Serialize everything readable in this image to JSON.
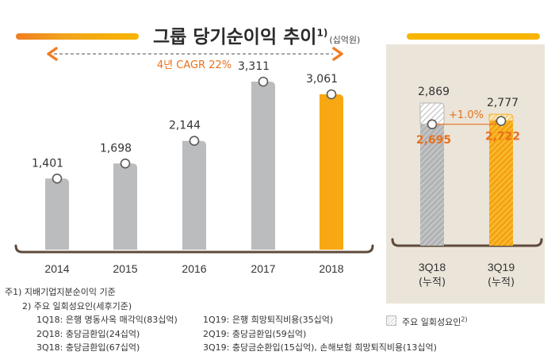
{
  "title": {
    "text": "그룹 당기순이익 추이",
    "sup": "1)",
    "unit": "(십억원)"
  },
  "colors": {
    "gray_bar": "#bbbcbe",
    "highlight_bar": "#f7a813",
    "orange_text": "#e8711a",
    "axis_dark": "#5e4a3a",
    "panel_bg": "#ebe4d9"
  },
  "chart_data": [
    {
      "type": "bar",
      "title": "",
      "categories": [
        "2014",
        "2015",
        "2016",
        "2017",
        "2018"
      ],
      "values": [
        1401,
        1698,
        2144,
        3311,
        3061
      ],
      "value_labels": [
        "1,401",
        "1,698",
        "2,144",
        "3,311",
        "3,061"
      ],
      "highlight_index": 4,
      "ylim": [
        0,
        3600
      ],
      "annotation": {
        "text": "4년 CAGR 22%",
        "arrow": "double-headed dashed arrow spanning 2014 to 2018"
      }
    },
    {
      "type": "bar",
      "title": "",
      "categories": [
        "3Q18\n(누적)",
        "3Q19\n(누적)"
      ],
      "category_lines": [
        [
          "3Q18",
          "(누적)"
        ],
        [
          "3Q19",
          "(누적)"
        ]
      ],
      "series": [
        {
          "values": [
            2695,
            2722
          ],
          "value_labels": [
            "2,695",
            "2,722"
          ]
        },
        {
          "values": [
            2869,
            2777
          ],
          "value_labels": [
            "2,869",
            "2,777"
          ]
        }
      ],
      "growth_label": "+1.0%",
      "ylim": [
        0,
        3600
      ]
    }
  ],
  "footnotes": {
    "note1": "주1) 지배기업지분순이익 기준",
    "note2": "2) 주요 일회성요인(세후기준)",
    "rows": [
      {
        "left": "1Q18: 은행 명동사옥 매각익(83십억)",
        "right": "1Q19: 은행 희망퇴직비용(35십억)"
      },
      {
        "left": "2Q18: 충당금환입(24십억)",
        "right": "2Q19: 충당금환입(59십억)"
      },
      {
        "left": "3Q18: 충당금환입(67십억)",
        "right": "3Q19: 충당금순환입(15십억), 손해보험 희망퇴직비용(13십억)"
      }
    ]
  },
  "legend": {
    "label": "주요 일회성요인",
    "sup": "2)"
  }
}
